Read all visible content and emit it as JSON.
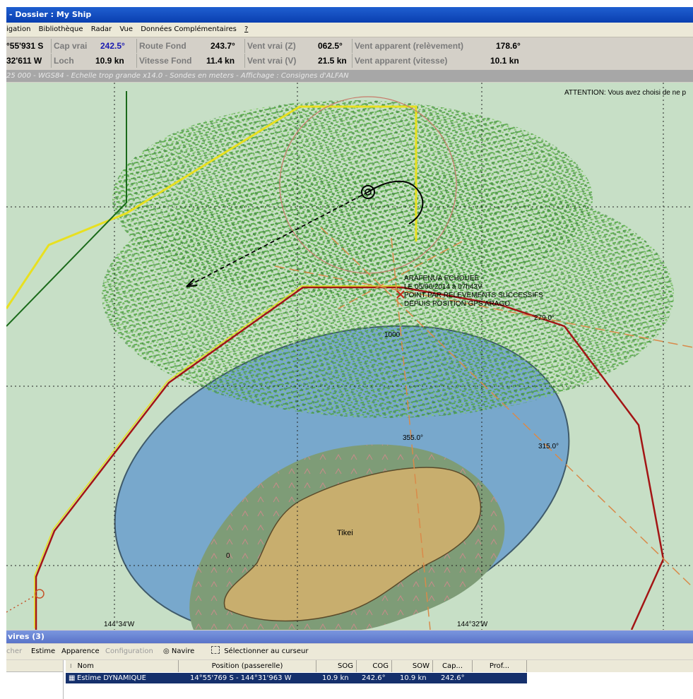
{
  "window": {
    "title": "- Dossier : My Ship"
  },
  "menu": [
    "igation",
    "Bibliothèque",
    "Radar",
    "Vue",
    "Données Complémentaires",
    "?"
  ],
  "info": {
    "lat": "°55'931 S",
    "lon": "32'611 W",
    "cap_label": "Cap vrai",
    "cap_value": "242.5°",
    "loch_label": "Loch",
    "loch_value": "10.9 kn",
    "route_label": "Route Fond",
    "route_value": "243.7°",
    "vitesse_label": "Vitesse Fond",
    "vitesse_value": "11.4 kn",
    "vent_z_label": "Vent vrai (Z)",
    "vent_z_value": "062.5°",
    "vent_v_label": "Vent vrai (V)",
    "vent_v_value": "21.5 kn",
    "vent_rel_label": "Vent apparent (relèvement)",
    "vent_rel_value": "178.6°",
    "vent_vit_label": "Vent apparent (vitesse)",
    "vent_vit_value": "10.1 kn"
  },
  "chart_status": "25 000 - WGS84 - Echelle trop grande x14.0 - Sondes en meters - Affichage : Consignes d'ALFAN",
  "map": {
    "attention": "ATTENTION: Vous avez choisi de ne p",
    "annotation": [
      "ARAFENUA ECHOUEE",
      "LE 05/06/2014 à 07h43V",
      "POINT PAR RELEVEMENTS SUCCESSIFS",
      "DEPUIS POSITION GPS ARAGO"
    ],
    "bearing_279": "279.0°",
    "bearing_355": "355.0°",
    "bearing_315": "315.0°",
    "depth_1000": "1000",
    "depth_0": "0",
    "island": "Tikei",
    "lon_left": "144°34'W",
    "lon_right": "144°32'W",
    "colors": {
      "sea_shallow": "#c7dfc6",
      "deep": "#78a8cc",
      "reef": "#7e9c77",
      "land": "#c8ae6e",
      "radar": "#4caa38",
      "route_red": "#a31515",
      "route_yellow": "#e8e020"
    }
  },
  "panel": {
    "title": "vires (3)",
    "toolbar": {
      "cher": "cher",
      "estime": "Estime",
      "apparence": "Apparence",
      "configuration": "Configuration",
      "navire": "Navire",
      "select": "Sélectionner au curseur"
    },
    "columns": [
      "Nom",
      "Position (passerelle)",
      "SOG",
      "COG",
      "SOW",
      "Cap...",
      "Prof..."
    ],
    "row": {
      "nom": "Estime DYNAMIQUE",
      "position": "14°55'769 S - 144°31'963 W",
      "sog": "10.9 kn",
      "cog": "242.6°",
      "sow": "10.9 kn",
      "cap": "242.6°",
      "prof": ""
    }
  }
}
